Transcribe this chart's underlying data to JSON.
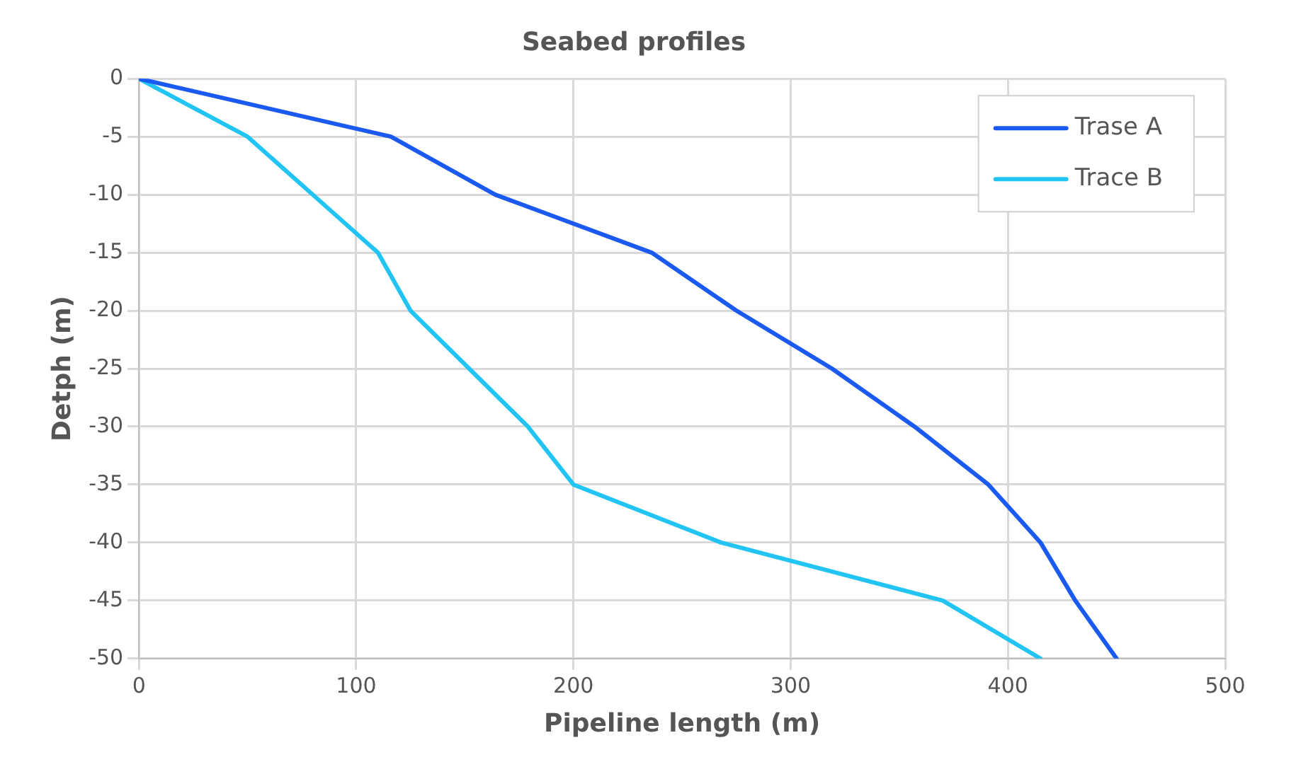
{
  "chart_data": {
    "type": "line",
    "title": "Seabed profiles",
    "xlabel": "Pipeline length (m)",
    "ylabel": "Detph (m)",
    "xlim": [
      0,
      500
    ],
    "xticks": [
      0,
      100,
      200,
      300,
      400,
      500
    ],
    "ylim": [
      -50,
      0
    ],
    "yticks": [
      -50,
      -45,
      -40,
      -35,
      -30,
      -25,
      -20,
      -15,
      -10,
      -5,
      0
    ],
    "grid": true,
    "legend": "top right",
    "marker": "none",
    "line_style": "solid",
    "series": [
      {
        "name": "Trase A",
        "color": "#1a5af0",
        "x": [
          0,
          116,
          164,
          236,
          275,
          319,
          357,
          391,
          415,
          431,
          450
        ],
        "values": [
          0,
          -5,
          -10,
          -15,
          -20,
          -25,
          -30,
          -35,
          -40,
          -45,
          -50
        ]
      },
      {
        "name": "Trace B",
        "color": "#22c4f4",
        "x": [
          0,
          50,
          80,
          110,
          125,
          152,
          179,
          200,
          268,
          370,
          415
        ],
        "values": [
          0,
          -5,
          -10,
          -15,
          -20,
          -25,
          -30,
          -35,
          -40,
          -45,
          -50
        ]
      }
    ]
  }
}
